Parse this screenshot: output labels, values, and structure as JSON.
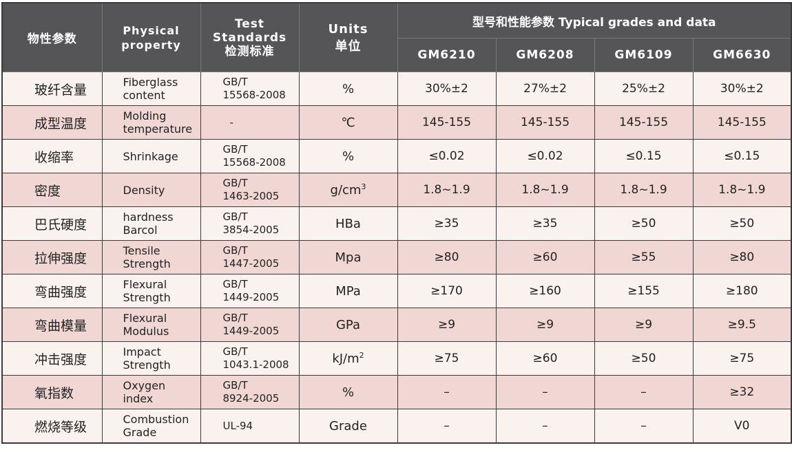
{
  "header": {
    "col_cn": "物性参数",
    "col_physical_line1": "Physical",
    "col_physical_line2": "property",
    "col_test_line1": "Test",
    "col_test_line2": "Standards",
    "col_test_line3": "检测标准",
    "col_units_line1": "Units",
    "col_units_line2": "单位",
    "group_title": "型号和性能参数  Typical grades and data",
    "grades": [
      "GM6210",
      "GM6208",
      "GM6109",
      "GM6630"
    ]
  },
  "rows": [
    {
      "cn": "玻纤含量",
      "en1": "Fiberglass",
      "en2": "content",
      "std1": "GB/T",
      "std2": "15568-2008",
      "unit": "%",
      "v": [
        "30%±2",
        "27%±2",
        "25%±2",
        "30%±2"
      ]
    },
    {
      "cn": "成型温度",
      "en1": "Molding",
      "en2": "temperature",
      "std1": "-",
      "std2": "",
      "unit": "℃",
      "v": [
        "145-155",
        "145-155",
        "145-155",
        "145-155"
      ]
    },
    {
      "cn": "收缩率",
      "en1": "Shrinkage",
      "en2": "",
      "std1": "GB/T",
      "std2": "15568-2008",
      "unit": "%",
      "v": [
        "≤0.02",
        "≤0.02",
        "≤0.15",
        "≤0.15"
      ]
    },
    {
      "cn": "密度",
      "en1": "Density",
      "en2": "",
      "std1": "GB/T",
      "std2": "1463-2005",
      "unit": "g/cm",
      "unit_sup": "3",
      "v": [
        "1.8~1.9",
        "1.8~1.9",
        "1.8~1.9",
        "1.8~1.9"
      ]
    },
    {
      "cn": "巴氏硬度",
      "en1": "hardness",
      "en2": "Barcol",
      "std1": "GB/T",
      "std2": "3854-2005",
      "unit": "HBa",
      "v": [
        "≥35",
        "≥35",
        "≥50",
        "≥50"
      ]
    },
    {
      "cn": "拉伸强度",
      "en1": "Tensile",
      "en2": "Strength",
      "std1": "GB/T",
      "std2": "1447-2005",
      "unit": "Mpa",
      "v": [
        "≥80",
        "≥60",
        "≥55",
        "≥80"
      ]
    },
    {
      "cn": "弯曲强度",
      "en1": "Flexural",
      "en2": "Strength",
      "std1": "GB/T",
      "std2": "1449-2005",
      "unit": "MPa",
      "v": [
        "≥170",
        "≥160",
        "≥155",
        "≥180"
      ]
    },
    {
      "cn": "弯曲模量",
      "en1": "Flexural",
      "en2": "Modulus",
      "std1": "GB/T",
      "std2": "1449-2005",
      "unit": "GPa",
      "v": [
        "≥9",
        "≥9",
        "≥9",
        "≥9.5"
      ]
    },
    {
      "cn": "冲击强度",
      "en1": "Impact",
      "en2": "Strength",
      "std1": "GB/T",
      "std2": "1043.1-2008",
      "unit": "kJ/m",
      "unit_sup": "2",
      "v": [
        "≥75",
        "≥60",
        "≥50",
        "≥75"
      ]
    },
    {
      "cn": "氧指数",
      "en1": "Oxygen",
      "en2": "index",
      "std1": "GB/T",
      "std2": "8924-2005",
      "unit": "%",
      "v": [
        "–",
        "–",
        "–",
        "≥32"
      ]
    },
    {
      "cn": "燃烧等级",
      "en1": "Combustion",
      "en2": "Grade",
      "std1": "UL-94",
      "std2": "",
      "unit": "Grade",
      "v": [
        "–",
        "–",
        "–",
        "V0"
      ]
    }
  ]
}
